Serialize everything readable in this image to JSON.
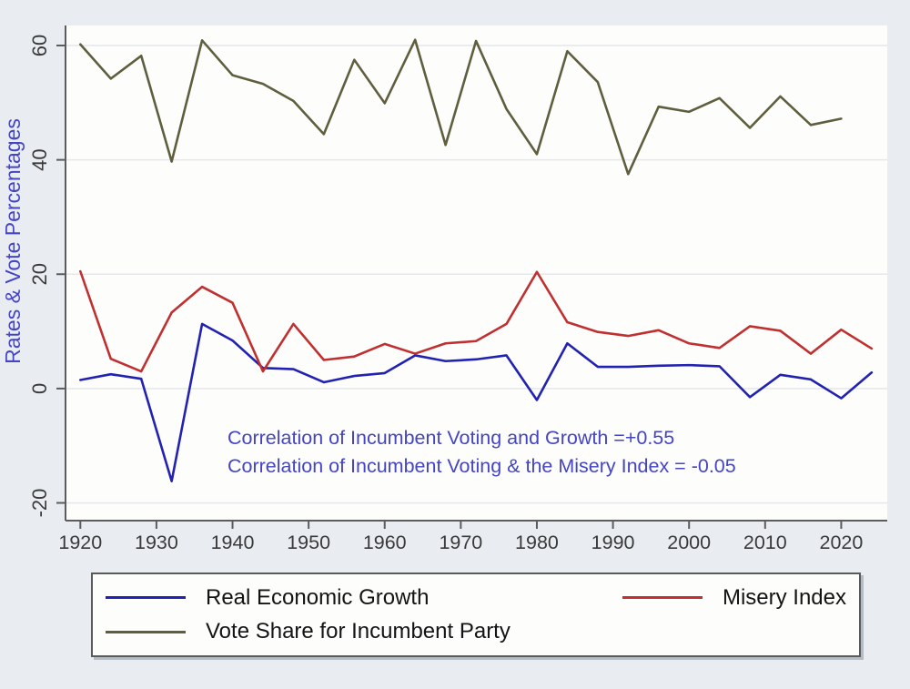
{
  "figure": {
    "y_axis_title": "Rates & Vote Percentages",
    "annotations": {
      "line1": "Correlation of Incumbent Voting and Growth =+0.55",
      "line2": "Correlation of Incumbent Voting & the Misery Index = -0.05"
    },
    "legend": [
      {
        "label": "Real Economic Growth",
        "color": "#2222b2"
      },
      {
        "label": "Misery Index",
        "color": "#c03030"
      },
      {
        "label": "Vote Share for Incumbent Party",
        "color": "#62624205"
      }
    ]
  },
  "colors": {
    "background": "#e9edf2",
    "plot_bg": "#fdfdfc",
    "grid": "#e6e8eb",
    "axis": "#5c5c5c",
    "tick_label": "#3a3a3a",
    "annotation": "#4545c4",
    "growth_line": "#2222b2",
    "misery_line": "#c03030",
    "voteshare_line": "#5f5f3f"
  },
  "chart_data": {
    "type": "line",
    "title": "",
    "xlabel": "",
    "ylabel": "Rates & Vote Percentages",
    "grid": true,
    "legend_position": "bottom",
    "xlim": [
      1918.05,
      2026.05
    ],
    "ylim": [
      -23.1,
      63.5
    ],
    "xticks": [
      1920,
      1930,
      1940,
      1950,
      1960,
      1970,
      1980,
      1990,
      2000,
      2010,
      2020
    ],
    "yticks": [
      60,
      40,
      20,
      0,
      -20
    ],
    "x": [
      1920,
      1924,
      1928,
      1932,
      1936,
      1940,
      1944,
      1948,
      1952,
      1956,
      1960,
      1964,
      1968,
      1972,
      1976,
      1980,
      1984,
      1988,
      1992,
      1996,
      2000,
      2004,
      2008,
      2012,
      2016,
      2020,
      2024
    ],
    "series": [
      {
        "name": "Real Economic Growth",
        "color": "#2222b2",
        "values": [
          1.5,
          2.5,
          1.7,
          -16.2,
          11.3,
          8.4,
          3.6,
          3.4,
          1.1,
          2.2,
          2.7,
          5.8,
          4.8,
          5.1,
          5.8,
          -2.0,
          7.9,
          3.8,
          3.8,
          4.0,
          4.1,
          3.9,
          -1.5,
          2.4,
          1.6,
          -1.7,
          2.8
        ]
      },
      {
        "name": "Misery Index",
        "color": "#c03030",
        "values": [
          20.5,
          5.2,
          3.0,
          13.3,
          17.8,
          15.0,
          3.0,
          11.3,
          5.0,
          5.6,
          7.8,
          6.1,
          7.9,
          8.3,
          11.3,
          20.4,
          11.6,
          9.9,
          9.2,
          10.2,
          7.9,
          7.1,
          10.9,
          10.1,
          6.1,
          10.3,
          7.0
        ]
      },
      {
        "name": "Vote Share for Incumbent Party",
        "color": "#5f5f3f",
        "values": [
          60.2,
          54.2,
          58.2,
          39.7,
          60.9,
          54.8,
          53.3,
          50.3,
          44.5,
          57.5,
          49.9,
          61.0,
          42.6,
          60.8,
          48.9,
          41.0,
          59.0,
          53.6,
          37.5,
          49.3,
          48.4,
          50.8,
          45.6,
          51.1,
          46.1,
          47.2,
          null
        ]
      }
    ],
    "annotations": [
      "Correlation of Incumbent Voting and Growth =+0.55",
      "Correlation of Incumbent Voting & the Misery Index = -0.05"
    ]
  }
}
